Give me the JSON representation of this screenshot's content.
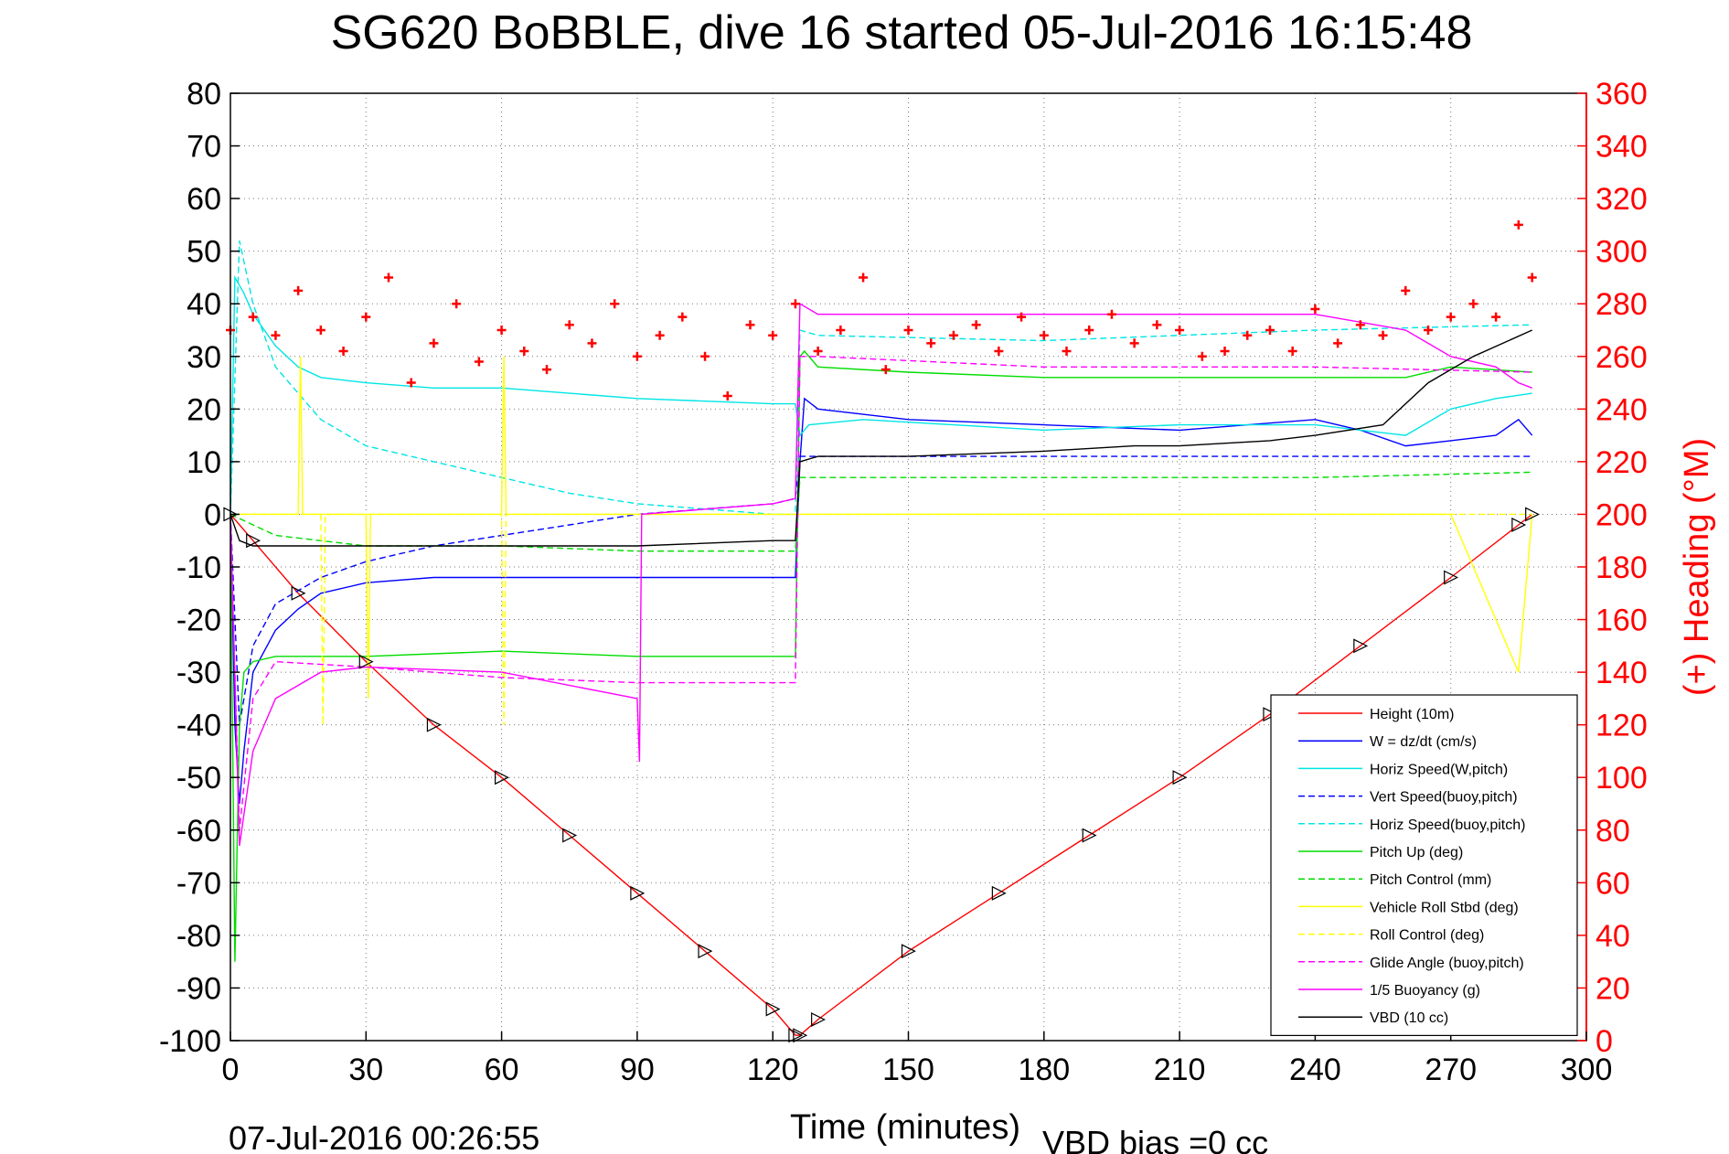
{
  "chart_data": {
    "type": "line",
    "title": "SG620 BoBBLE, dive 16 started 05-Jul-2016 16:15:48",
    "xlabel": "Time (minutes)",
    "ylabel": "",
    "y2label": "(+) Heading (°M)",
    "xlim": [
      0,
      300
    ],
    "ylim": [
      -100,
      80
    ],
    "y2lim": [
      0,
      360
    ],
    "grid": true,
    "legend_position": "bottom-right",
    "x_ticks": [
      "0",
      "30",
      "60",
      "90",
      "120",
      "150",
      "180",
      "210",
      "240",
      "270",
      "300"
    ],
    "y_ticks": [
      "80",
      "70",
      "60",
      "50",
      "40",
      "30",
      "20",
      "10",
      "0",
      "-10",
      "-20",
      "-30",
      "-40",
      "-50",
      "-60",
      "-70",
      "-80",
      "-90",
      "-100"
    ],
    "y2_ticks": [
      "360",
      "340",
      "320",
      "300",
      "280",
      "260",
      "240",
      "220",
      "200",
      "180",
      "160",
      "140",
      "120",
      "100",
      "80",
      "60",
      "40",
      "20",
      "0"
    ],
    "series": [
      {
        "name": "Height (10m)",
        "color": "#ff0000",
        "style": "solid",
        "marker": "triangle",
        "x": [
          0,
          5,
          15,
          30,
          45,
          60,
          75,
          90,
          105,
          120,
          125,
          126,
          130,
          150,
          170,
          190,
          210,
          230,
          250,
          270,
          285,
          288
        ],
        "y": [
          0,
          -5,
          -15,
          -28,
          -40,
          -50,
          -61,
          -72,
          -83,
          -94,
          -99,
          -99,
          -96,
          -83,
          -72,
          -61,
          -50,
          -38,
          -25,
          -12,
          -2,
          0
        ]
      },
      {
        "name": "W = dz/dt (cm/s)",
        "color": "#0000ff",
        "style": "solid",
        "x": [
          0,
          1,
          2,
          3,
          5,
          10,
          15,
          20,
          30,
          45,
          60,
          90,
          120,
          125,
          126,
          127,
          130,
          150,
          180,
          210,
          240,
          250,
          260,
          270,
          280,
          285,
          288
        ],
        "y": [
          0,
          -40,
          -55,
          -45,
          -30,
          -22,
          -18,
          -15,
          -13,
          -12,
          -12,
          -12,
          -12,
          -12,
          10,
          22,
          20,
          18,
          17,
          16,
          18,
          16,
          13,
          14,
          15,
          18,
          15
        ]
      },
      {
        "name": "Horiz Speed(W,pitch)",
        "color": "#00e5e5",
        "style": "solid",
        "x": [
          0,
          1,
          3,
          5,
          10,
          15,
          20,
          30,
          45,
          60,
          90,
          120,
          125,
          126,
          128,
          140,
          160,
          180,
          210,
          240,
          250,
          260,
          270,
          280,
          288
        ],
        "y": [
          0,
          45,
          42,
          38,
          32,
          28,
          26,
          25,
          24,
          24,
          22,
          21,
          21,
          15,
          17,
          18,
          17,
          16,
          17,
          17,
          16,
          15,
          20,
          22,
          23
        ]
      },
      {
        "name": "Vert Speed(buoy,pitch)",
        "color": "#0000ff",
        "style": "dashed",
        "x": [
          0,
          2,
          5,
          10,
          20,
          30,
          45,
          60,
          75,
          90,
          120,
          125,
          126,
          130,
          288
        ],
        "y": [
          0,
          -40,
          -25,
          -17,
          -12,
          -9,
          -6,
          -4,
          -2,
          0,
          2,
          3,
          11,
          11,
          11
        ]
      },
      {
        "name": "Horiz Speed(buoy,pitch)",
        "color": "#00e5e5",
        "style": "dashed",
        "x": [
          0,
          2,
          5,
          10,
          20,
          30,
          45,
          60,
          75,
          90,
          120,
          125,
          126,
          130,
          180,
          240,
          288
        ],
        "y": [
          0,
          52,
          40,
          28,
          18,
          13,
          10,
          7,
          4,
          2,
          0,
          0,
          35,
          34,
          33,
          35,
          36
        ]
      },
      {
        "name": "Pitch Up (deg)",
        "color": "#00dd00",
        "style": "solid",
        "x": [
          0,
          1,
          2,
          3,
          5,
          10,
          20,
          30,
          60,
          90,
          120,
          125,
          126,
          127,
          130,
          150,
          180,
          210,
          240,
          260,
          270,
          288
        ],
        "y": [
          0,
          -85,
          -40,
          -30,
          -28,
          -27,
          -27,
          -27,
          -26,
          -27,
          -27,
          -27,
          30,
          31,
          28,
          27,
          26,
          26,
          26,
          26,
          28,
          27
        ]
      },
      {
        "name": "Pitch Control (mm)",
        "color": "#00dd00",
        "style": "dashed",
        "x": [
          0,
          5,
          10,
          30,
          60,
          90,
          120,
          125,
          126,
          130,
          180,
          240,
          288
        ],
        "y": [
          0,
          -2,
          -4,
          -6,
          -6,
          -7,
          -7,
          -7,
          7,
          7,
          7,
          7,
          8
        ]
      },
      {
        "name": "Vehicle Roll Stbd (deg)",
        "color": "#ffff00",
        "style": "solid",
        "x": [
          0,
          15,
          15.5,
          16,
          30,
          30.5,
          31,
          60,
          60.5,
          61,
          90,
          120,
          125,
          126,
          150,
          180,
          210,
          240,
          270,
          285,
          288
        ],
        "y": [
          0,
          0,
          30,
          0,
          0,
          -35,
          0,
          0,
          30,
          0,
          0,
          0,
          0,
          0,
          0,
          0,
          0,
          0,
          0,
          -30,
          0
        ]
      },
      {
        "name": "Roll Control (deg)",
        "color": "#ffff00",
        "style": "dashed",
        "x": [
          0,
          20,
          20.5,
          21,
          60,
          60.5,
          61,
          120,
          150,
          180,
          210,
          240,
          270,
          288
        ],
        "y": [
          0,
          0,
          -40,
          0,
          0,
          -40,
          0,
          0,
          0,
          0,
          0,
          0,
          0,
          0
        ]
      },
      {
        "name": "Glide Angle (buoy,pitch)",
        "color": "#ff00ff",
        "style": "dashed",
        "x": [
          0,
          2,
          5,
          10,
          30,
          60,
          90,
          120,
          125,
          126,
          130,
          180,
          240,
          288
        ],
        "y": [
          0,
          -60,
          -35,
          -28,
          -29,
          -31,
          -32,
          -32,
          -32,
          30,
          30,
          28,
          28,
          27
        ]
      },
      {
        "name": "1/5 Buoyancy (g)",
        "color": "#ff00ff",
        "style": "solid",
        "x": [
          0,
          2,
          5,
          10,
          20,
          30,
          60,
          90,
          90.5,
          91,
          120,
          125,
          126,
          130,
          180,
          240,
          260,
          270,
          280,
          285,
          288
        ],
        "y": [
          0,
          -63,
          -45,
          -35,
          -30,
          -29,
          -30,
          -35,
          -47,
          0,
          2,
          3,
          40,
          38,
          38,
          38,
          35,
          30,
          28,
          25,
          24
        ]
      },
      {
        "name": "VBD (10 cc)",
        "color": "#000000",
        "style": "solid",
        "x": [
          0,
          2,
          5,
          30,
          60,
          90,
          120,
          125,
          126,
          130,
          150,
          180,
          200,
          210,
          230,
          240,
          255,
          265,
          275,
          288
        ],
        "y": [
          0,
          -5,
          -6,
          -6,
          -6,
          -6,
          -5,
          -5,
          10,
          11,
          11,
          12,
          13,
          13,
          14,
          15,
          17,
          25,
          30,
          35
        ]
      },
      {
        "name": "Heading",
        "color": "#ff0000",
        "style": "markers",
        "axis": "right",
        "x": [
          0,
          5,
          10,
          15,
          20,
          25,
          30,
          35,
          40,
          45,
          50,
          55,
          60,
          65,
          70,
          75,
          80,
          85,
          90,
          95,
          100,
          105,
          110,
          115,
          120,
          125,
          130,
          135,
          140,
          145,
          150,
          155,
          160,
          165,
          170,
          175,
          180,
          185,
          190,
          195,
          200,
          205,
          210,
          215,
          220,
          225,
          230,
          235,
          240,
          245,
          250,
          255,
          260,
          265,
          270,
          275,
          280,
          285,
          288
        ],
        "y": [
          270,
          275,
          268,
          285,
          270,
          262,
          275,
          290,
          250,
          265,
          280,
          258,
          270,
          262,
          255,
          272,
          265,
          280,
          260,
          268,
          275,
          260,
          245,
          272,
          268,
          280,
          262,
          270,
          290,
          255,
          270,
          265,
          268,
          272,
          262,
          275,
          268,
          262,
          270,
          276,
          265,
          272,
          270,
          260,
          262,
          268,
          270,
          262,
          278,
          265,
          272,
          268,
          285,
          270,
          275,
          280,
          275,
          310,
          290
        ]
      }
    ]
  },
  "footer": {
    "end_time": "07-Jul-2016 00:26:55",
    "vbd_bias": "VBD bias =0 cc"
  }
}
